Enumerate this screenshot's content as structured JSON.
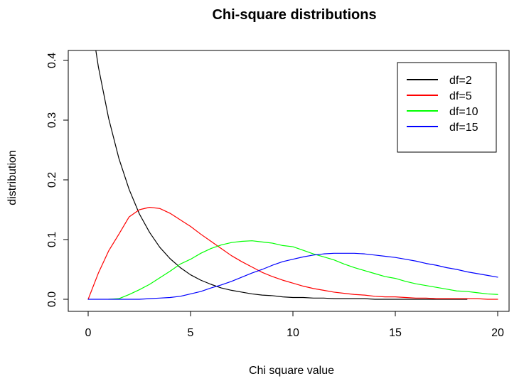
{
  "chart_data": {
    "type": "line",
    "title": "Chi-square distributions",
    "xlabel": "Chi square value",
    "ylabel": "distribution",
    "xlim": [
      0,
      20
    ],
    "ylim": [
      0,
      0.4
    ],
    "x_ticks": [
      0,
      5,
      10,
      15,
      20
    ],
    "x_tick_labels": [
      "0",
      "5",
      "10",
      "15",
      "20"
    ],
    "y_ticks": [
      0.0,
      0.1,
      0.2,
      0.3,
      0.4
    ],
    "y_tick_labels": [
      "0.0",
      "0.1",
      "0.2",
      "0.3",
      "0.4"
    ],
    "grid": false,
    "legend_position": "top-right",
    "x": [
      0.0,
      0.5,
      1.0,
      1.5,
      2.0,
      2.5,
      3.0,
      3.5,
      4.0,
      4.5,
      5.0,
      5.5,
      6.0,
      6.5,
      7.0,
      7.5,
      8.0,
      8.5,
      9.0,
      9.5,
      10.0,
      10.5,
      11.0,
      11.5,
      12.0,
      12.5,
      13.0,
      13.5,
      14.0,
      14.5,
      15.0,
      15.5,
      16.0,
      16.5,
      17.0,
      17.5,
      18.0,
      18.5,
      19.0,
      19.5,
      20.0
    ],
    "series": [
      {
        "name": "df=2",
        "color": "#000000",
        "values": [
          0.5,
          0.389,
          0.303,
          0.236,
          0.184,
          0.143,
          0.112,
          0.087,
          0.068,
          0.053,
          0.041,
          0.032,
          0.025,
          0.019,
          0.015,
          0.012,
          0.009,
          0.007,
          0.006,
          0.004,
          0.003,
          0.003,
          0.002,
          0.002,
          0.001,
          0.001,
          0.001,
          0.001,
          0.0,
          0.0,
          0.0,
          0.0,
          0.0,
          0.0,
          0.0,
          0.0,
          0.0,
          0.0,
          null,
          null,
          null
        ]
      },
      {
        "name": "df=5",
        "color": "#ff0000",
        "values": [
          0.0,
          0.044,
          0.081,
          0.109,
          0.138,
          0.15,
          0.154,
          0.152,
          0.144,
          0.133,
          0.122,
          0.109,
          0.097,
          0.085,
          0.073,
          0.063,
          0.054,
          0.045,
          0.038,
          0.032,
          0.027,
          0.022,
          0.018,
          0.015,
          0.012,
          0.01,
          0.008,
          0.007,
          0.005,
          0.004,
          0.004,
          0.003,
          0.002,
          0.002,
          0.001,
          0.001,
          0.001,
          0.001,
          0.001,
          0.0,
          0.0
        ]
      },
      {
        "name": "df=10",
        "color": "#00ff00",
        "values": [
          null,
          null,
          0.0,
          0.001,
          0.008,
          0.016,
          0.025,
          0.036,
          0.047,
          0.059,
          0.067,
          0.077,
          0.085,
          0.091,
          0.095,
          0.097,
          0.098,
          0.096,
          0.094,
          0.09,
          0.088,
          0.082,
          0.076,
          0.071,
          0.066,
          0.059,
          0.053,
          0.048,
          0.043,
          0.038,
          0.035,
          0.03,
          0.026,
          0.023,
          0.02,
          0.017,
          0.014,
          0.013,
          0.011,
          0.009,
          0.008
        ]
      },
      {
        "name": "df=15",
        "color": "#0000ff",
        "values": [
          0.0,
          0.0,
          0.0,
          0.0,
          0.0,
          0.0,
          0.001,
          0.002,
          0.003,
          0.005,
          0.009,
          0.013,
          0.019,
          0.024,
          0.03,
          0.037,
          0.044,
          0.05,
          0.057,
          0.063,
          0.067,
          0.071,
          0.074,
          0.076,
          0.077,
          0.077,
          0.077,
          0.076,
          0.074,
          0.072,
          0.07,
          0.067,
          0.064,
          0.06,
          0.057,
          0.053,
          0.05,
          0.046,
          0.043,
          0.04,
          0.037
        ]
      }
    ]
  }
}
